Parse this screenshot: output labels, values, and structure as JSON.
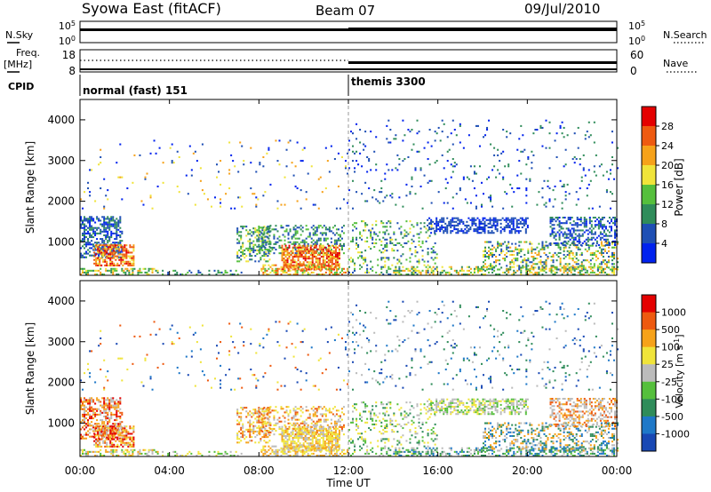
{
  "header": {
    "station": "Syowa East (fitACF)",
    "beam": "Beam 07",
    "date": "09/Jul/2010"
  },
  "panels": {
    "nsky_label": "N.Sky",
    "nsky_ticks": [
      "10^5",
      "10^0"
    ],
    "nsearch_label": "N.Search",
    "nsearch_ticks": [
      "10^5",
      "10^0"
    ],
    "freq_label_1": "Freq.",
    "freq_label_2": "[MHz]",
    "freq_ticks": [
      "18",
      "8"
    ],
    "nave_label": "Nave",
    "nave_ticks": [
      "60",
      "0"
    ],
    "cpid_label": "CPID",
    "cpid_modes": [
      {
        "name": "normal (fast) 151",
        "start_ut": 0
      },
      {
        "name": "themis 3300",
        "start_ut": 12
      }
    ]
  },
  "colors": {
    "power_scale": [
      "#0022ee",
      "#1e4fb4",
      "#2f8c5a",
      "#55bf3c",
      "#f0e43a",
      "#f6a21a",
      "#ee5a10",
      "#e40000"
    ],
    "velocity_scale": [
      "#1848b4",
      "#1e78c8",
      "#2f8c5a",
      "#55bf3c",
      "#bbbbbb",
      "#f0e43a",
      "#f6a21a",
      "#ee5a10",
      "#e40000"
    ]
  },
  "chart_data": [
    {
      "type": "heatmap",
      "name": "power",
      "ylabel": "Slant Range [km]",
      "yticks": [
        "4000",
        "3000",
        "2000",
        "1000"
      ],
      "ylim": [
        180,
        4500
      ],
      "colorbar_label": "Power [dB]",
      "colorbar_ticks": [
        "28",
        "24",
        "20",
        "16",
        "12",
        "8",
        "4"
      ],
      "color_range": [
        0,
        30
      ]
    },
    {
      "type": "heatmap",
      "name": "velocity",
      "ylabel": "Slant Range [km]",
      "yticks": [
        "4000",
        "3000",
        "2000",
        "1000"
      ],
      "ylim": [
        180,
        4500
      ],
      "colorbar_label": "Velocity [m s^-1]",
      "colorbar_ticks": [
        "1000",
        "500",
        "100",
        "25",
        "-25",
        "-100",
        "-500",
        "-1000"
      ]
    }
  ],
  "time_axis": {
    "xlabel": "Time UT",
    "ticks": [
      "00:00",
      "04:00",
      "08:00",
      "12:00",
      "16:00",
      "20:00",
      "00:00"
    ],
    "xlim_hours": [
      0,
      24
    ]
  }
}
